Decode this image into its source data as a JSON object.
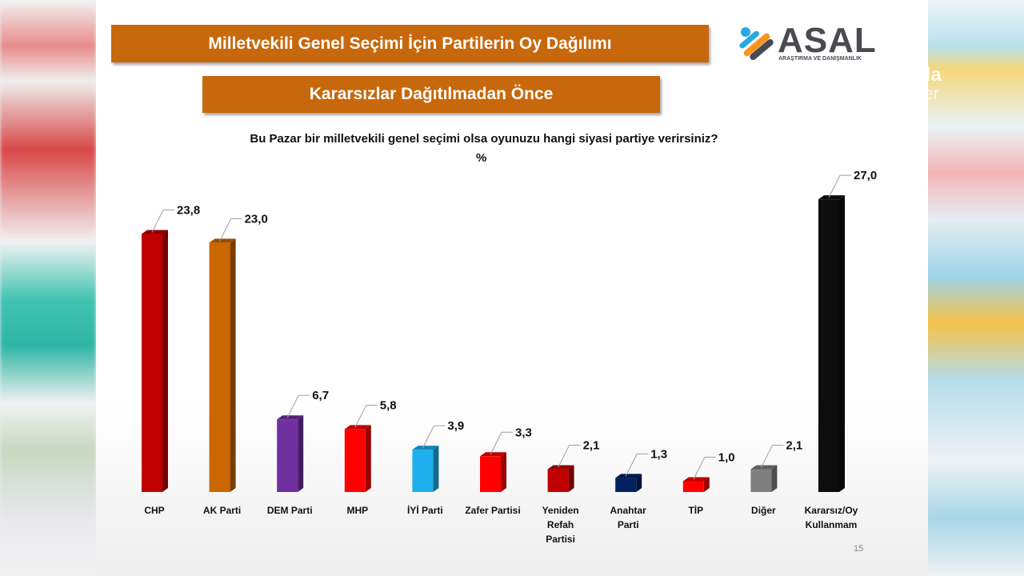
{
  "watermark": {
    "line1": "ida",
    "line2": "ber"
  },
  "banner_title": "Milletvekili Genel Seçimi İçin Partilerin Oy Dağılımı",
  "banner_subtitle": "Kararsızlar Dağıtılmadan Önce",
  "logo": {
    "name": "ASAL",
    "tagline": "ARAŞTIRMA VE DANIŞMANLIK"
  },
  "page_number": "15",
  "chart_data": {
    "type": "bar",
    "title": "Bu Pazar bir milletvekili genel seçimi olsa oyunuzu hangi siyasi partiye verirsiniz?",
    "unit": "%",
    "xlabel": "",
    "ylabel": "",
    "ylim": [
      0,
      30
    ],
    "grid": false,
    "legend": "none",
    "categories": [
      "CHP",
      "AK Parti",
      "DEM Parti",
      "MHP",
      "İYİ Parti",
      "Zafer Partisi",
      "Yeniden Refah Partisi",
      "Anahtar Parti",
      "TİP",
      "Diğer",
      "Kararsız/Oy Kullanmam"
    ],
    "category_lines": [
      [
        "CHP"
      ],
      [
        "AK Parti"
      ],
      [
        "DEM Parti"
      ],
      [
        "MHP"
      ],
      [
        "İYİ Parti"
      ],
      [
        "Zafer Partisi"
      ],
      [
        "Yeniden",
        "Refah",
        "Partisi"
      ],
      [
        "Anahtar",
        "Parti"
      ],
      [
        "TİP"
      ],
      [
        "Diğer"
      ],
      [
        "Kararsız/Oy",
        "Kullanmam"
      ]
    ],
    "values": [
      23.8,
      23.0,
      6.7,
      5.8,
      3.9,
      3.3,
      2.1,
      1.3,
      1.0,
      2.1,
      27.0
    ],
    "value_labels": [
      "23,8",
      "23,0",
      "6,7",
      "5,8",
      "3,9",
      "3,3",
      "2,1",
      "1,3",
      "1,0",
      "2,1",
      "27,0"
    ],
    "colors": [
      "#c00000",
      "#cc6600",
      "#7030a0",
      "#ff0000",
      "#1fb0ee",
      "#ff0000",
      "#c00000",
      "#002060",
      "#ff0000",
      "#7f7f7f",
      "#0d0d0d"
    ]
  }
}
